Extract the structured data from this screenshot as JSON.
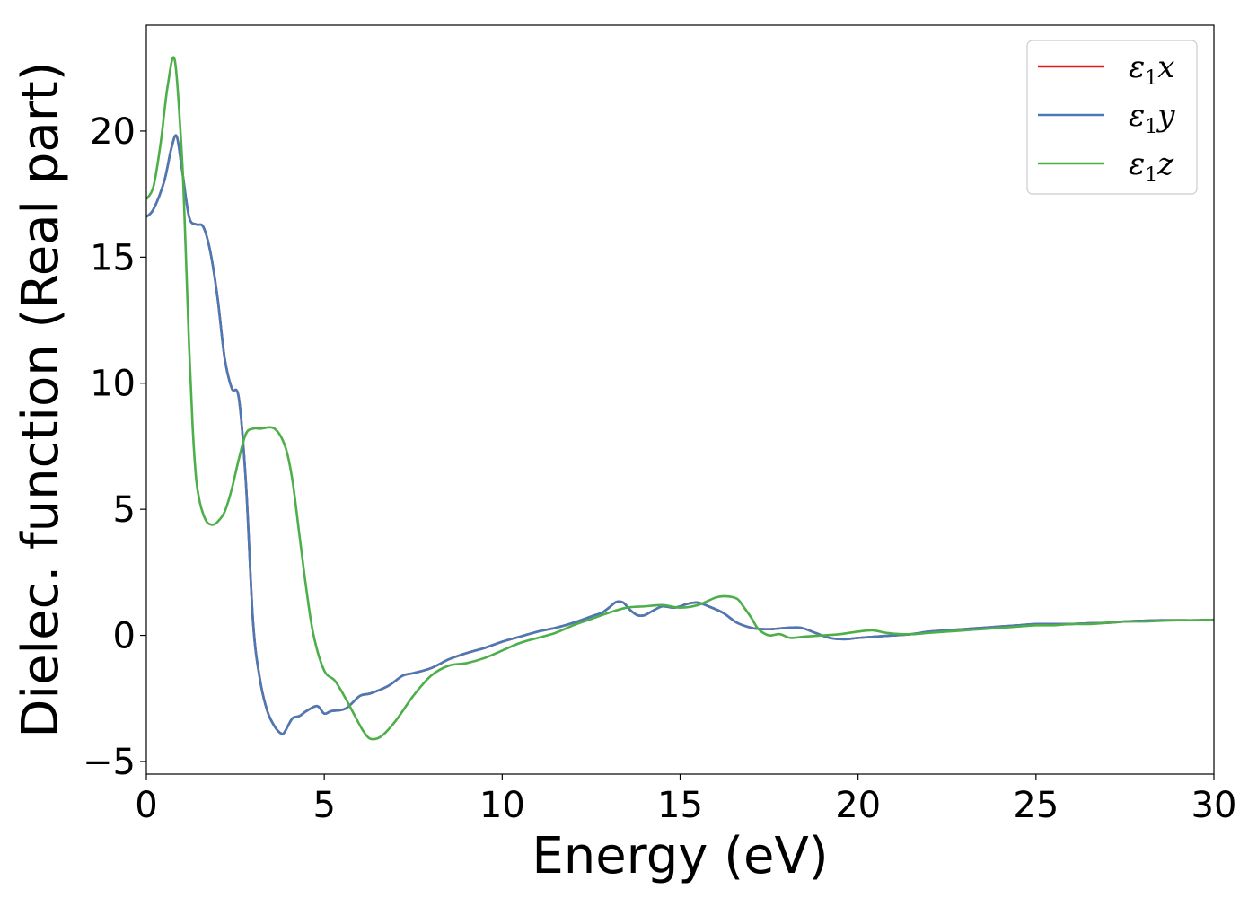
{
  "chart_data": {
    "type": "line",
    "title": "",
    "xlabel": "Energy (eV)",
    "ylabel": "Dielec. function (Real part)",
    "xlim": [
      0,
      30
    ],
    "ylim": [
      -5.5,
      24.2
    ],
    "xticks": [
      0,
      5,
      10,
      15,
      20,
      25,
      30
    ],
    "yticks": [
      -5,
      0,
      5,
      10,
      15,
      20
    ],
    "ytick_labels": [
      "−5",
      "0",
      "5",
      "10",
      "15",
      "20"
    ],
    "grid": false,
    "legend_position": "top-right",
    "series": [
      {
        "name_symbol": "ε",
        "name_sub": "1",
        "name_var": "x",
        "color": "#e41a1c",
        "x": [
          0,
          0.2,
          0.5,
          0.7,
          0.85,
          1.0,
          1.2,
          1.4,
          1.6,
          1.8,
          2.0,
          2.2,
          2.4,
          2.6,
          2.8,
          3.0,
          3.2,
          3.4,
          3.6,
          3.8,
          3.9,
          4.1,
          4.3,
          4.5,
          4.8,
          5.0,
          5.2,
          5.6,
          6.0,
          6.3,
          6.8,
          7.2,
          7.5,
          8.0,
          8.5,
          9.0,
          9.5,
          10.0,
          10.5,
          11.0,
          11.5,
          12.0,
          12.5,
          12.8,
          13.0,
          13.2,
          13.4,
          13.6,
          13.8,
          14.0,
          14.2,
          14.5,
          14.8,
          15.0,
          15.2,
          15.5,
          15.8,
          16.2,
          16.6,
          17.0,
          17.3,
          17.6,
          18.0,
          18.4,
          18.8,
          19.2,
          19.6,
          20.0,
          20.5,
          21.0,
          21.5,
          22.0,
          22.5,
          23.0,
          23.5,
          24.0,
          24.5,
          25.0,
          25.5,
          26.0,
          26.5,
          27.0,
          27.5,
          28.0,
          28.5,
          29.0,
          29.5,
          30.0
        ],
        "y": [
          16.6,
          16.9,
          18.0,
          19.3,
          19.8,
          18.5,
          16.6,
          16.3,
          16.2,
          15.2,
          13.4,
          11.0,
          9.8,
          9.4,
          6.0,
          0.5,
          -1.8,
          -3.0,
          -3.6,
          -3.9,
          -3.8,
          -3.3,
          -3.2,
          -3.0,
          -2.8,
          -3.1,
          -3.0,
          -2.9,
          -2.4,
          -2.3,
          -2.0,
          -1.6,
          -1.5,
          -1.3,
          -0.95,
          -0.7,
          -0.5,
          -0.25,
          -0.05,
          0.15,
          0.3,
          0.5,
          0.75,
          0.9,
          1.1,
          1.32,
          1.3,
          1.0,
          0.8,
          0.8,
          0.95,
          1.15,
          1.1,
          1.15,
          1.25,
          1.3,
          1.15,
          0.9,
          0.5,
          0.3,
          0.25,
          0.25,
          0.3,
          0.3,
          0.1,
          -0.1,
          -0.15,
          -0.1,
          -0.05,
          0.0,
          0.05,
          0.15,
          0.2,
          0.25,
          0.3,
          0.35,
          0.4,
          0.45,
          0.45,
          0.45,
          0.48,
          0.5,
          0.55,
          0.58,
          0.6,
          0.6,
          0.6,
          0.62
        ]
      },
      {
        "name_symbol": "ε",
        "name_sub": "1",
        "name_var": "y",
        "color": "#4a7ab5",
        "x": [
          0,
          0.2,
          0.5,
          0.7,
          0.85,
          1.0,
          1.2,
          1.4,
          1.6,
          1.8,
          2.0,
          2.2,
          2.4,
          2.6,
          2.8,
          3.0,
          3.2,
          3.4,
          3.6,
          3.8,
          3.9,
          4.1,
          4.3,
          4.5,
          4.8,
          5.0,
          5.2,
          5.6,
          6.0,
          6.3,
          6.8,
          7.2,
          7.5,
          8.0,
          8.5,
          9.0,
          9.5,
          10.0,
          10.5,
          11.0,
          11.5,
          12.0,
          12.5,
          12.8,
          13.0,
          13.2,
          13.4,
          13.6,
          13.8,
          14.0,
          14.2,
          14.5,
          14.8,
          15.0,
          15.2,
          15.5,
          15.8,
          16.2,
          16.6,
          17.0,
          17.3,
          17.6,
          18.0,
          18.4,
          18.8,
          19.2,
          19.6,
          20.0,
          20.5,
          21.0,
          21.5,
          22.0,
          22.5,
          23.0,
          23.5,
          24.0,
          24.5,
          25.0,
          25.5,
          26.0,
          26.5,
          27.0,
          27.5,
          28.0,
          28.5,
          29.0,
          29.5,
          30.0
        ],
        "y": [
          16.6,
          16.9,
          18.0,
          19.3,
          19.8,
          18.5,
          16.6,
          16.3,
          16.2,
          15.2,
          13.4,
          11.0,
          9.8,
          9.4,
          6.0,
          0.5,
          -1.8,
          -3.0,
          -3.6,
          -3.9,
          -3.8,
          -3.3,
          -3.2,
          -3.0,
          -2.8,
          -3.1,
          -3.0,
          -2.9,
          -2.4,
          -2.3,
          -2.0,
          -1.6,
          -1.5,
          -1.3,
          -0.95,
          -0.7,
          -0.5,
          -0.25,
          -0.05,
          0.15,
          0.3,
          0.5,
          0.75,
          0.9,
          1.1,
          1.32,
          1.3,
          1.0,
          0.8,
          0.8,
          0.95,
          1.15,
          1.1,
          1.15,
          1.25,
          1.3,
          1.15,
          0.9,
          0.5,
          0.3,
          0.25,
          0.25,
          0.3,
          0.3,
          0.1,
          -0.1,
          -0.15,
          -0.1,
          -0.05,
          0.0,
          0.05,
          0.15,
          0.2,
          0.25,
          0.3,
          0.35,
          0.4,
          0.45,
          0.45,
          0.45,
          0.48,
          0.5,
          0.55,
          0.58,
          0.6,
          0.6,
          0.6,
          0.62
        ]
      },
      {
        "name_symbol": "ε",
        "name_sub": "1",
        "name_var": "z",
        "color": "#4daf4a",
        "x": [
          0,
          0.2,
          0.4,
          0.6,
          0.8,
          1.0,
          1.1,
          1.2,
          1.3,
          1.4,
          1.5,
          1.6,
          1.7,
          1.8,
          1.9,
          2.0,
          2.2,
          2.4,
          2.6,
          2.8,
          3.0,
          3.2,
          3.6,
          3.9,
          4.1,
          4.3,
          4.5,
          4.7,
          5.0,
          5.3,
          5.6,
          5.9,
          6.1,
          6.3,
          6.6,
          7.0,
          7.5,
          8.0,
          8.5,
          9.0,
          9.5,
          10.0,
          10.5,
          11.0,
          11.5,
          12.0,
          12.5,
          13.0,
          13.5,
          14.0,
          14.5,
          15.0,
          15.5,
          16.0,
          16.3,
          16.6,
          16.8,
          17.0,
          17.2,
          17.5,
          17.8,
          18.1,
          18.5,
          19.0,
          19.5,
          20.0,
          20.4,
          20.8,
          21.2,
          21.6,
          22.0,
          22.5,
          23.0,
          23.5,
          24.0,
          24.5,
          25.0,
          25.5,
          26.0,
          26.5,
          27.0,
          27.5,
          28.0,
          28.5,
          29.0,
          29.5,
          30.0
        ],
        "y": [
          17.3,
          17.8,
          19.5,
          21.8,
          22.8,
          19.0,
          15.5,
          11.5,
          8.3,
          6.2,
          5.3,
          4.8,
          4.5,
          4.4,
          4.4,
          4.5,
          4.9,
          5.8,
          7.0,
          8.0,
          8.2,
          8.2,
          8.2,
          7.5,
          6.2,
          4.0,
          1.8,
          0.0,
          -1.4,
          -1.8,
          -2.5,
          -3.3,
          -3.8,
          -4.1,
          -4.0,
          -3.4,
          -2.4,
          -1.6,
          -1.2,
          -1.1,
          -0.9,
          -0.6,
          -0.3,
          -0.1,
          0.1,
          0.4,
          0.65,
          0.9,
          1.1,
          1.15,
          1.2,
          1.1,
          1.2,
          1.5,
          1.55,
          1.45,
          1.1,
          0.7,
          0.25,
          0.0,
          0.05,
          -0.1,
          -0.05,
          0.0,
          0.05,
          0.15,
          0.2,
          0.1,
          0.05,
          0.05,
          0.1,
          0.15,
          0.2,
          0.25,
          0.3,
          0.35,
          0.4,
          0.4,
          0.45,
          0.45,
          0.5,
          0.55,
          0.55,
          0.58,
          0.6,
          0.6,
          0.62
        ]
      }
    ]
  }
}
